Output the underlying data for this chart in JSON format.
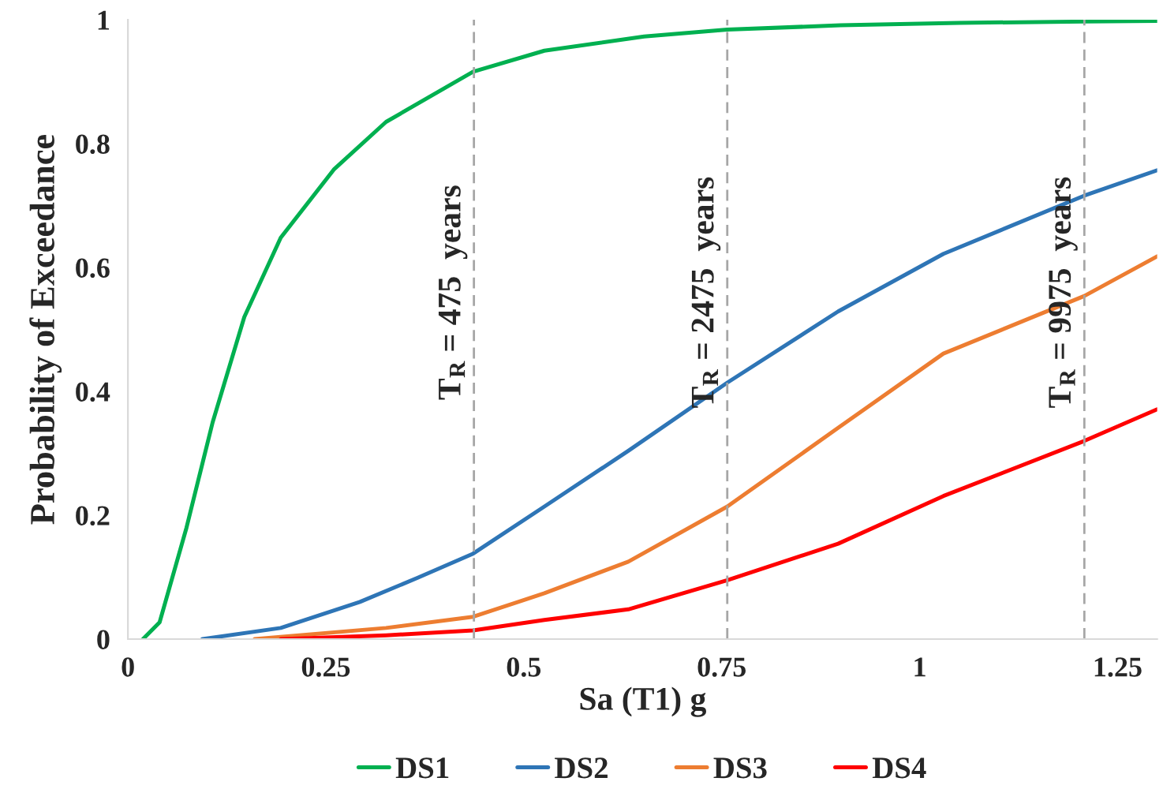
{
  "chart_data": {
    "type": "line",
    "xlabel": "Sa (T1) g",
    "ylabel": "Probability of Exceedance",
    "xlim": [
      0,
      1.3
    ],
    "ylim": [
      0,
      1
    ],
    "xticks": [
      0,
      0.25,
      0.5,
      0.75,
      1,
      1.25
    ],
    "yticks": [
      0,
      0.2,
      0.4,
      0.6,
      0.8,
      1
    ],
    "grid": false,
    "legend": "bottom",
    "marker": "none",
    "line_style": "solid",
    "series": [
      {
        "name": "DS1",
        "color": "#00b050",
        "x": [
          0.019,
          0.04,
          0.074,
          0.107,
          0.147,
          0.193,
          0.26,
          0.326,
          0.436,
          0.526,
          0.652,
          0.757,
          0.9,
          1.05,
          1.208,
          1.3
        ],
        "values": [
          0,
          0.027,
          0.18,
          0.35,
          0.52,
          0.648,
          0.758,
          0.835,
          0.916,
          0.95,
          0.973,
          0.984,
          0.991,
          0.995,
          0.997,
          0.998
        ]
      },
      {
        "name": "DS2",
        "color": "#2e75b6",
        "x": [
          0.094,
          0.193,
          0.293,
          0.366,
          0.436,
          0.526,
          0.632,
          0.757,
          0.897,
          1.03,
          1.208,
          1.3
        ],
        "values": [
          0,
          0.018,
          0.06,
          0.099,
          0.138,
          0.214,
          0.304,
          0.414,
          0.529,
          0.622,
          0.716,
          0.757
        ]
      },
      {
        "name": "DS3",
        "color": "#ed7d31",
        "x": [
          0.16,
          0.326,
          0.436,
          0.526,
          0.632,
          0.757,
          0.897,
          1.03,
          1.208,
          1.3
        ],
        "values": [
          0,
          0.018,
          0.036,
          0.074,
          0.125,
          0.214,
          0.341,
          0.461,
          0.554,
          0.618
        ]
      },
      {
        "name": "DS4",
        "color": "#ff0000",
        "x": [
          0.193,
          0.326,
          0.436,
          0.526,
          0.632,
          0.757,
          0.897,
          1.03,
          1.208,
          1.3
        ],
        "values": [
          0,
          0.006,
          0.014,
          0.031,
          0.048,
          0.095,
          0.154,
          0.231,
          0.32,
          0.371
        ]
      }
    ],
    "ref_lines": [
      {
        "axis": "x",
        "value": 0.437,
        "color": "#a6a6a6",
        "line_style": "dashed"
      },
      {
        "axis": "x",
        "value": 0.757,
        "color": "#a6a6a6",
        "line_style": "dashed"
      },
      {
        "axis": "x",
        "value": 1.208,
        "color": "#a6a6a6",
        "line_style": "dashed"
      }
    ],
    "annotations": [
      {
        "text": "T$_{R}$ = 475  years",
        "x": 0.437,
        "y": 0.56
      },
      {
        "text": "T$_{R}$ = 2475  years",
        "x": 0.757,
        "y": 0.56
      },
      {
        "text": "T$_{R}$ = 9975  years",
        "x": 1.208,
        "y": 0.56
      }
    ]
  }
}
